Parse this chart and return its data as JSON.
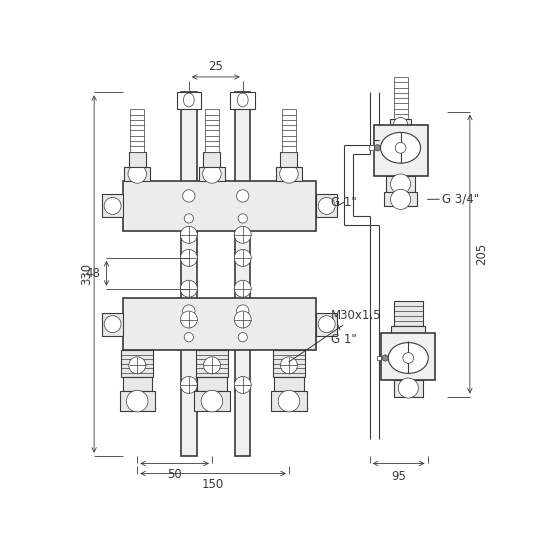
{
  "bg_color": "#ffffff",
  "lc": "#3a3a3a",
  "dc": "#3a3a3a",
  "lw": 0.8,
  "lwt": 0.5,
  "lwk": 1.2,
  "lwd": 0.6
}
